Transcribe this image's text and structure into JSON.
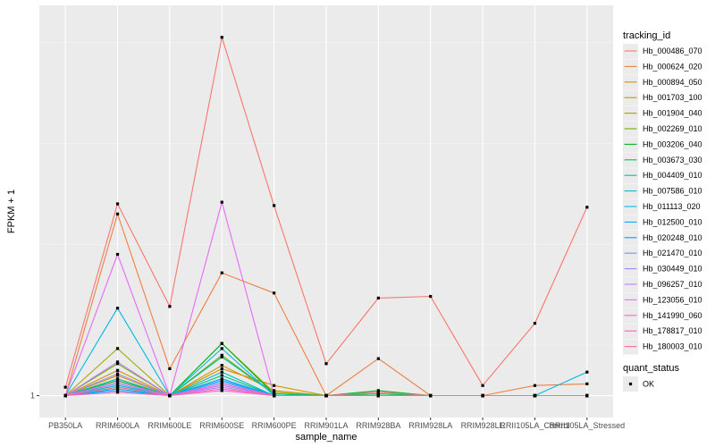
{
  "chart_data": {
    "type": "line",
    "xlabel": "sample_name",
    "ylabel": "FPKM + 1",
    "categories": [
      "PB350LA",
      "RRIM600LA",
      "RRIM600LE",
      "RRIM600SE",
      "RRIM600PE",
      "RRIM901LA",
      "RRIM928BA",
      "RRIM928LA",
      "RRIM928LE",
      "RRII105LA_Control",
      "RRII105LA_Stressed"
    ],
    "y_ticks": [
      {
        "value": 1,
        "label": "1"
      }
    ],
    "ylim": [
      -0.3,
      24.2
    ],
    "grid": true,
    "legend": {
      "position": "right",
      "series_title": "tracking_id",
      "status_title": "quant_status",
      "status_label": "OK"
    },
    "series": [
      {
        "name": "Hb_000486_070",
        "color": "#F8766D",
        "values": [
          1.5,
          12.4,
          6.3,
          22.3,
          12.3,
          2.9,
          6.8,
          6.9,
          1.6,
          5.3,
          12.2
        ]
      },
      {
        "name": "Hb_000624_020",
        "color": "#EE8042",
        "values": [
          1.0,
          11.8,
          2.6,
          8.3,
          7.1,
          1.0,
          3.2,
          1.0,
          1.0,
          1.6,
          1.7
        ]
      },
      {
        "name": "Hb_000894_050",
        "color": "#DC8D00",
        "values": [
          1.0,
          2.2,
          1.0,
          2.6,
          1.6,
          1.0,
          1.1,
          1.0,
          1.0,
          1.0,
          1.0
        ]
      },
      {
        "name": "Hb_001703_100",
        "color": "#C59900",
        "values": [
          1.0,
          2.5,
          1.0,
          2.8,
          1.3,
          1.0,
          1.0,
          1.0,
          1.0,
          1.0,
          1.0
        ]
      },
      {
        "name": "Hb_001904_040",
        "color": "#A3A500",
        "values": [
          1.0,
          3.8,
          1.0,
          4.1,
          1.2,
          1.0,
          1.0,
          1.0,
          1.0,
          1.0,
          1.0
        ]
      },
      {
        "name": "Hb_002269_010",
        "color": "#72B000",
        "values": [
          1.0,
          2.9,
          1.0,
          3.4,
          1.1,
          1.0,
          1.2,
          1.0,
          1.0,
          1.0,
          1.0
        ]
      },
      {
        "name": "Hb_003206_040",
        "color": "#00B81F",
        "values": [
          1.0,
          1.9,
          1.0,
          4.1,
          1.1,
          1.0,
          1.3,
          1.0,
          1.0,
          1.0,
          1.0
        ]
      },
      {
        "name": "Hb_003673_030",
        "color": "#00BE6C",
        "values": [
          1.0,
          1.5,
          1.0,
          2.2,
          1.0,
          1.0,
          1.1,
          1.0,
          1.0,
          1.0,
          1.0
        ]
      },
      {
        "name": "Hb_004409_010",
        "color": "#00C19F",
        "values": [
          1.0,
          2.0,
          1.0,
          3.3,
          1.1,
          1.0,
          1.0,
          1.0,
          1.0,
          1.0,
          1.0
        ]
      },
      {
        "name": "Hb_007586_010",
        "color": "#00BFC4",
        "values": [
          1.0,
          1.6,
          1.0,
          2.4,
          1.0,
          1.0,
          1.0,
          1.0,
          1.0,
          1.0,
          1.0
        ]
      },
      {
        "name": "Hb_011113_020",
        "color": "#00B8E5",
        "values": [
          1.0,
          6.2,
          1.0,
          3.8,
          1.0,
          1.0,
          1.0,
          1.0,
          1.0,
          1.0,
          2.4
        ]
      },
      {
        "name": "Hb_012500_010",
        "color": "#00ABFD",
        "values": [
          1.0,
          1.3,
          1.0,
          1.9,
          1.0,
          1.0,
          1.0,
          1.0,
          1.0,
          1.0,
          1.0
        ]
      },
      {
        "name": "Hb_020248_010",
        "color": "#00A5FF",
        "values": [
          1.0,
          1.4,
          1.0,
          2.0,
          1.0,
          1.0,
          1.0,
          1.0,
          1.0,
          1.0,
          1.0
        ]
      },
      {
        "name": "Hb_021470_010",
        "color": "#619CFF",
        "values": [
          1.0,
          1.7,
          1.0,
          1.8,
          1.0,
          1.0,
          1.0,
          1.0,
          1.0,
          1.0,
          1.0
        ]
      },
      {
        "name": "Hb_030449_010",
        "color": "#9D8AFF",
        "values": [
          1.0,
          2.3,
          1.0,
          1.6,
          1.0,
          1.0,
          1.0,
          1.0,
          1.0,
          1.0,
          1.0
        ]
      },
      {
        "name": "Hb_096257_010",
        "color": "#C77CFF",
        "values": [
          1.0,
          3.0,
          1.0,
          1.5,
          1.0,
          1.0,
          1.0,
          1.0,
          1.0,
          1.0,
          1.0
        ]
      },
      {
        "name": "Hb_123056_010",
        "color": "#E76BF3",
        "values": [
          1.0,
          9.4,
          1.0,
          12.5,
          1.0,
          1.0,
          1.0,
          1.0,
          1.0,
          1.0,
          1.0
        ]
      },
      {
        "name": "Hb_141990_060",
        "color": "#F763E0",
        "values": [
          1.0,
          1.8,
          1.0,
          1.3,
          1.0,
          1.0,
          1.0,
          1.0,
          1.0,
          1.0,
          1.0
        ]
      },
      {
        "name": "Hb_178817_010",
        "color": "#FF62BC",
        "values": [
          1.0,
          1.2,
          1.0,
          1.7,
          1.0,
          1.0,
          1.0,
          1.0,
          1.0,
          1.0,
          1.0
        ]
      },
      {
        "name": "Hb_180003_010",
        "color": "#FF6C91",
        "values": [
          1.0,
          1.5,
          1.0,
          1.4,
          1.0,
          1.0,
          1.2,
          1.0,
          1.0,
          1.0,
          1.0
        ]
      }
    ]
  },
  "colors": {
    "panel_background": "#EBEBEB",
    "grid_major": "#FFFFFF",
    "grid_minor": "#F5F5F5",
    "point": "#000000"
  }
}
